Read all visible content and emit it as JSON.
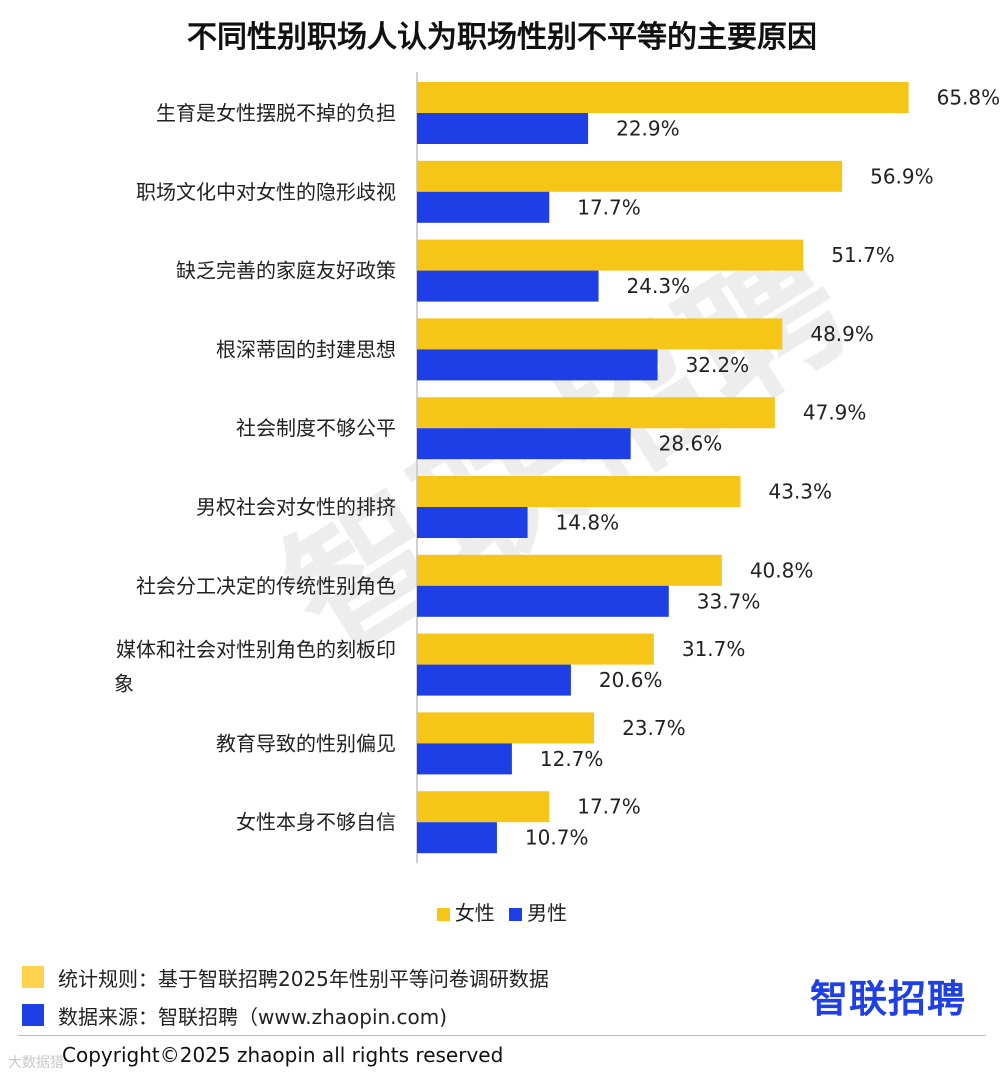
{
  "title": "不同性别职场人认为职场性别不平等的主要原因",
  "watermark": "智联招聘",
  "chart_data": {
    "type": "bar",
    "orientation": "horizontal",
    "categories": [
      "生育是女性摆脱不掉的负担",
      "职场文化中对女性的隐形歧视",
      "缺乏完善的家庭友好政策",
      "根深蒂固的封建思想",
      "社会制度不够公平",
      "男权社会对女性的排挤",
      "社会分工决定的传统性别角色",
      "媒体和社会对性别角色的刻板印象",
      "教育导致的性别偏见",
      "女性本身不够自信"
    ],
    "series": [
      {
        "name": "女性",
        "color": "#f5c518",
        "values": [
          65.8,
          56.9,
          51.7,
          48.9,
          47.9,
          43.3,
          40.8,
          31.7,
          23.7,
          17.7
        ]
      },
      {
        "name": "男性",
        "color": "#1e3ee6",
        "values": [
          22.9,
          17.7,
          24.3,
          32.2,
          28.6,
          14.8,
          33.7,
          20.6,
          12.7,
          10.7
        ]
      }
    ],
    "value_suffix": "%",
    "xlim": [
      0,
      70
    ],
    "legend": "bottom-center"
  },
  "notes": [
    {
      "color": "#fdd34d",
      "text": "统计规则：基于智联招聘2025年性别平等问卷调研数据"
    },
    {
      "color": "#1e3ee6",
      "text": "数据来源：智联招聘（www.zhaopin.com)"
    }
  ],
  "brand": "智联招聘",
  "copyright": "Copyright©2025 zhaopin all rights reserved",
  "corner_mark": "大数据猎"
}
